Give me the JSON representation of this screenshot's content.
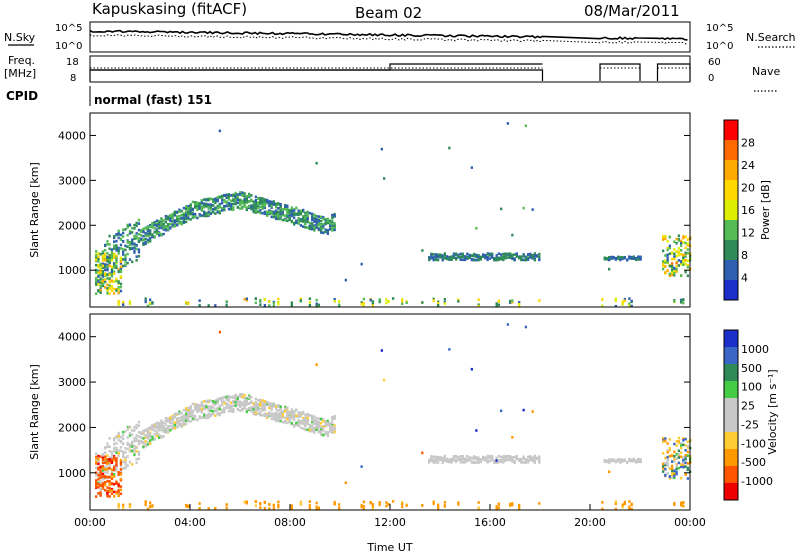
{
  "header": {
    "station": "Kapuskasing (fitACF)",
    "beam": "Beam 02",
    "date": "08/Mar/2011"
  },
  "strip_panels": {
    "nsky_label": "N.Sky",
    "nsky_ticks": [
      "10^5",
      "10^0"
    ],
    "nsearch_label": "N.Search",
    "nsearch_ticks": [
      "10^5",
      "10^0"
    ],
    "freq_label": "Freq.",
    "freq_unit": "[MHz]",
    "freq_ticks": [
      "18",
      "8"
    ],
    "nave_label": "Nave",
    "nave_ticks": [
      "60",
      "0"
    ],
    "cpid_label": "CPID",
    "cpid_value": "normal (fast) 151"
  },
  "chart_data": [
    {
      "type": "heatmap",
      "name": "power",
      "ylabel": "Slant Range [km]",
      "xlabel": "",
      "x_range_hours": [
        0,
        24
      ],
      "ylim": [
        180,
        4500
      ],
      "yticks": [
        "1000",
        "2000",
        "3000",
        "4000"
      ],
      "colorbar": {
        "label": "Power [dB]",
        "ticks": [
          "28",
          "24",
          "20",
          "16",
          "12",
          "8",
          "4"
        ],
        "colors": [
          "#ff0000",
          "#ff6a00",
          "#ffaa00",
          "#ffd800",
          "#ddee00",
          "#55bb55",
          "#2e8b57",
          "#2f5fb0",
          "#1c2fc8"
        ]
      }
    },
    {
      "type": "heatmap",
      "name": "velocity",
      "ylabel": "Slant Range [km]",
      "xlabel": "Time UT",
      "x_range_hours": [
        0,
        24
      ],
      "ylim": [
        180,
        4500
      ],
      "yticks": [
        "1000",
        "2000",
        "3000",
        "4000"
      ],
      "xticks": [
        "00:00",
        "04:00",
        "08:00",
        "12:00",
        "16:00",
        "20:00",
        "00:00"
      ],
      "colorbar": {
        "label": "Velocity [m s⁻¹]",
        "ticks": [
          "1000",
          "500",
          "100",
          "25",
          "-25",
          "-100",
          "-500",
          "-1000"
        ],
        "colors": [
          "#1c2fc8",
          "#3a66c8",
          "#2e8b57",
          "#44cc44",
          "#c8c8c8",
          "#c8c8c8",
          "#ffcc33",
          "#ff9900",
          "#ff5500",
          "#ee0000"
        ]
      }
    }
  ]
}
